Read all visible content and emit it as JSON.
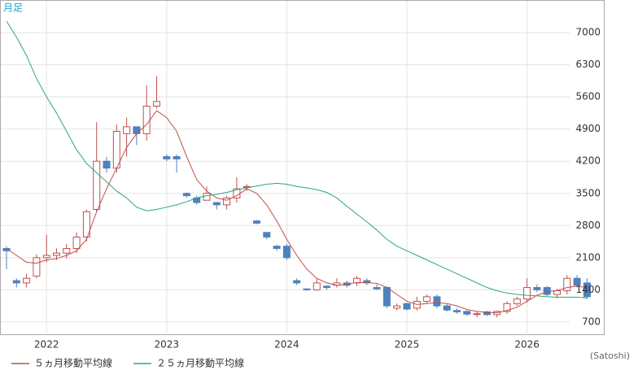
{
  "chart_data": {
    "type": "candlestick",
    "period_label": "月足",
    "source": "(Satoshi)",
    "categories": [
      null,
      null,
      null,
      null,
      "2022",
      null,
      null,
      null,
      null,
      null,
      null,
      null,
      null,
      null,
      null,
      null,
      "2023",
      null,
      null,
      null,
      null,
      null,
      null,
      null,
      null,
      null,
      null,
      null,
      "2024",
      null,
      null,
      null,
      null,
      null,
      null,
      null,
      null,
      null,
      null,
      null,
      "2025",
      null,
      null,
      null,
      null,
      null,
      null,
      null,
      null,
      null,
      null,
      null,
      "2026",
      null,
      null,
      null,
      null,
      null,
      null
    ],
    "candles": {
      "open": [
        2300,
        1600,
        1550,
        1700,
        2100,
        2150,
        2200,
        2300,
        2550,
        3150,
        4200,
        4050,
        4800,
        4950,
        4800,
        5400,
        4300,
        4300,
        3500,
        3400,
        3350,
        3300,
        3250,
        3400,
        3650,
        2900,
        2650,
        2350,
        2350,
        1600,
        1420,
        1400,
        1480,
        1500,
        1550,
        1550,
        1600,
        1450,
        1450,
        1000,
        1100,
        1000,
        1150,
        1250,
        1050,
        950,
        930,
        870,
        920,
        860,
        930,
        1100,
        1200,
        1450,
        1450,
        1300,
        1380,
        1650,
        1550
      ],
      "high": [
        2350,
        1650,
        1750,
        2170,
        2600,
        2300,
        2400,
        2650,
        3150,
        5050,
        4300,
        5000,
        5150,
        4950,
        5850,
        6050,
        4350,
        4350,
        3520,
        3450,
        3650,
        3310,
        3450,
        3850,
        3700,
        2920,
        2650,
        2380,
        2400,
        1650,
        1430,
        1650,
        1500,
        1650,
        1600,
        1700,
        1650,
        1520,
        1480,
        1100,
        1120,
        1250,
        1300,
        1300,
        1100,
        1000,
        950,
        930,
        940,
        950,
        1150,
        1250,
        1650,
        1520,
        1480,
        1420,
        1720,
        1720,
        1650
      ],
      "low": [
        1850,
        1450,
        1450,
        1650,
        2000,
        2050,
        2080,
        2200,
        2450,
        3100,
        3950,
        3950,
        4300,
        4550,
        4650,
        5350,
        4200,
        3950,
        3400,
        3250,
        3350,
        3150,
        3150,
        3300,
        3550,
        2830,
        2500,
        2250,
        2050,
        1500,
        1380,
        1380,
        1400,
        1450,
        1450,
        1480,
        1500,
        1400,
        1000,
        950,
        950,
        950,
        1100,
        1000,
        930,
        880,
        830,
        800,
        830,
        800,
        880,
        1050,
        1120,
        1350,
        1250,
        1220,
        1300,
        1450,
        1200
      ],
      "close": [
        2250,
        1550,
        1650,
        2100,
        2150,
        2200,
        2300,
        2550,
        3100,
        4200,
        4050,
        4850,
        4950,
        4800,
        5400,
        5500,
        4250,
        4250,
        3450,
        3300,
        3500,
        3250,
        3400,
        3600,
        3650,
        2850,
        2550,
        2300,
        2100,
        1550,
        1400,
        1550,
        1450,
        1550,
        1500,
        1650,
        1550,
        1420,
        1050,
        1050,
        980,
        1150,
        1250,
        1050,
        960,
        920,
        870,
        880,
        860,
        930,
        1100,
        1200,
        1450,
        1400,
        1300,
        1380,
        1650,
        1500,
        1250
      ]
    },
    "up_color": "#c0504d",
    "down_color": "#4f81bd",
    "series": [
      {
        "name": "５ヵ月移動平均線",
        "color": "#c0504d",
        "values": [
          2300,
          2150,
          2000,
          1980,
          2050,
          2080,
          2150,
          2250,
          2500,
          3100,
          3600,
          4050,
          4500,
          4800,
          5000,
          5300,
          5150,
          4850,
          4300,
          3800,
          3550,
          3400,
          3350,
          3450,
          3600,
          3500,
          3250,
          2900,
          2500,
          2150,
          1850,
          1650,
          1550,
          1500,
          1520,
          1560,
          1560,
          1540,
          1450,
          1300,
          1150,
          1080,
          1100,
          1120,
          1100,
          1050,
          970,
          930,
          910,
          900,
          950,
          1020,
          1150,
          1280,
          1360,
          1380,
          1450,
          1480,
          1450
        ]
      },
      {
        "name": "２５ヵ月移動平均線",
        "color": "#2aa87a",
        "values": [
          7250,
          6900,
          6500,
          6000,
          5600,
          5250,
          4850,
          4450,
          4150,
          3950,
          3750,
          3550,
          3400,
          3200,
          3120,
          3150,
          3200,
          3250,
          3320,
          3400,
          3450,
          3480,
          3520,
          3580,
          3620,
          3660,
          3700,
          3720,
          3700,
          3650,
          3620,
          3580,
          3520,
          3400,
          3220,
          3050,
          2880,
          2700,
          2500,
          2350,
          2250,
          2150,
          2050,
          1950,
          1850,
          1750,
          1650,
          1550,
          1450,
          1380,
          1330,
          1300,
          1280,
          1270,
          1250,
          1240,
          1240,
          1240,
          1220
        ]
      }
    ],
    "ylim": [
      450,
      7710
    ],
    "yticks": [
      700,
      1400,
      2100,
      2800,
      3500,
      4200,
      4900,
      5600,
      6300,
      7000
    ],
    "grid": true
  }
}
